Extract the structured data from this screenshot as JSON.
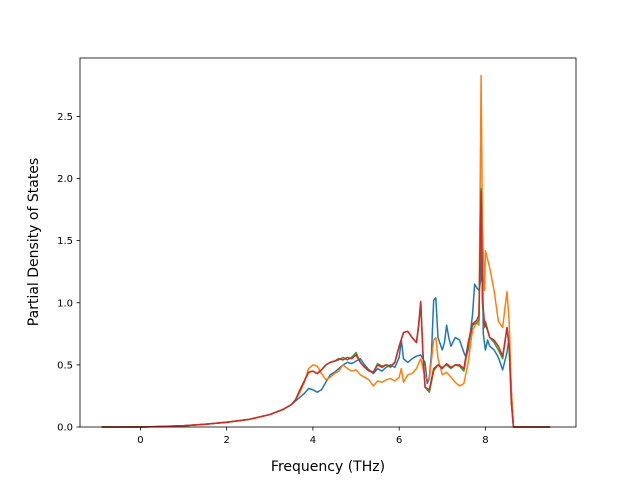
{
  "chart_data": {
    "type": "line",
    "title": "",
    "xlabel": "Frequency (THz)",
    "ylabel": "Partial Density of States",
    "xlim": [
      -1.4,
      10.1
    ],
    "ylim": [
      0.0,
      2.97
    ],
    "xticks": [
      0,
      2,
      4,
      6,
      8
    ],
    "xtick_labels": [
      "0",
      "2",
      "4",
      "6",
      "8"
    ],
    "yticks": [
      0.0,
      0.5,
      1.0,
      1.5,
      2.0,
      2.5
    ],
    "ytick_labels": [
      "0.0",
      "0.5",
      "1.0",
      "1.5",
      "2.0",
      "2.5"
    ],
    "grid": false,
    "legend": "none",
    "series": [
      {
        "color": "#1f77b4",
        "points": [
          [
            -0.9,
            0
          ],
          [
            0,
            0
          ],
          [
            0.5,
            0.004
          ],
          [
            1,
            0.01
          ],
          [
            1.5,
            0.022
          ],
          [
            2,
            0.038
          ],
          [
            2.5,
            0.06
          ],
          [
            3,
            0.1
          ],
          [
            3.3,
            0.14
          ],
          [
            3.5,
            0.18
          ],
          [
            3.6,
            0.21
          ],
          [
            3.7,
            0.24
          ],
          [
            3.8,
            0.27
          ],
          [
            3.9,
            0.31
          ],
          [
            4.0,
            0.3
          ],
          [
            4.1,
            0.28
          ],
          [
            4.2,
            0.3
          ],
          [
            4.3,
            0.36
          ],
          [
            4.4,
            0.42
          ],
          [
            4.5,
            0.44
          ],
          [
            4.6,
            0.47
          ],
          [
            4.7,
            0.5
          ],
          [
            4.8,
            0.52
          ],
          [
            4.9,
            0.51
          ],
          [
            5.0,
            0.53
          ],
          [
            5.1,
            0.55
          ],
          [
            5.2,
            0.5
          ],
          [
            5.3,
            0.46
          ],
          [
            5.4,
            0.43
          ],
          [
            5.5,
            0.47
          ],
          [
            5.6,
            0.45
          ],
          [
            5.7,
            0.48
          ],
          [
            5.8,
            0.5
          ],
          [
            5.9,
            0.48
          ],
          [
            6.0,
            0.56
          ],
          [
            6.05,
            0.7
          ],
          [
            6.1,
            0.55
          ],
          [
            6.2,
            0.52
          ],
          [
            6.3,
            0.55
          ],
          [
            6.4,
            0.57
          ],
          [
            6.5,
            0.58
          ],
          [
            6.6,
            0.52
          ],
          [
            6.65,
            0.35
          ],
          [
            6.7,
            0.4
          ],
          [
            6.75,
            0.6
          ],
          [
            6.8,
            1.02
          ],
          [
            6.85,
            1.04
          ],
          [
            6.9,
            0.72
          ],
          [
            7.0,
            0.62
          ],
          [
            7.05,
            0.68
          ],
          [
            7.1,
            0.82
          ],
          [
            7.15,
            0.72
          ],
          [
            7.2,
            0.65
          ],
          [
            7.3,
            0.72
          ],
          [
            7.4,
            0.7
          ],
          [
            7.5,
            0.6
          ],
          [
            7.55,
            0.56
          ],
          [
            7.6,
            0.62
          ],
          [
            7.7,
            0.9
          ],
          [
            7.75,
            1.15
          ],
          [
            7.8,
            1.12
          ],
          [
            7.85,
            1.1
          ],
          [
            7.9,
            1.2
          ],
          [
            7.92,
            1.8
          ],
          [
            7.95,
            0.75
          ],
          [
            8.0,
            0.62
          ],
          [
            8.05,
            0.7
          ],
          [
            8.1,
            0.65
          ],
          [
            8.2,
            0.62
          ],
          [
            8.3,
            0.56
          ],
          [
            8.4,
            0.46
          ],
          [
            8.5,
            0.6
          ],
          [
            8.55,
            0.72
          ],
          [
            8.6,
            0.3
          ],
          [
            8.65,
            0
          ],
          [
            9.5,
            0
          ]
        ]
      },
      {
        "color": "#ff7f0e",
        "points": [
          [
            -0.9,
            0
          ],
          [
            0,
            0
          ],
          [
            0.5,
            0.004
          ],
          [
            1,
            0.01
          ],
          [
            1.5,
            0.022
          ],
          [
            2,
            0.038
          ],
          [
            2.5,
            0.06
          ],
          [
            3,
            0.1
          ],
          [
            3.3,
            0.14
          ],
          [
            3.5,
            0.18
          ],
          [
            3.6,
            0.22
          ],
          [
            3.7,
            0.28
          ],
          [
            3.8,
            0.36
          ],
          [
            3.9,
            0.47
          ],
          [
            4.0,
            0.5
          ],
          [
            4.1,
            0.49
          ],
          [
            4.2,
            0.43
          ],
          [
            4.3,
            0.38
          ],
          [
            4.4,
            0.4
          ],
          [
            4.5,
            0.43
          ],
          [
            4.6,
            0.45
          ],
          [
            4.7,
            0.5
          ],
          [
            4.8,
            0.47
          ],
          [
            4.9,
            0.45
          ],
          [
            5.0,
            0.46
          ],
          [
            5.1,
            0.42
          ],
          [
            5.2,
            0.4
          ],
          [
            5.3,
            0.38
          ],
          [
            5.4,
            0.33
          ],
          [
            5.5,
            0.37
          ],
          [
            5.6,
            0.36
          ],
          [
            5.7,
            0.38
          ],
          [
            5.8,
            0.39
          ],
          [
            5.9,
            0.37
          ],
          [
            6.0,
            0.4
          ],
          [
            6.05,
            0.47
          ],
          [
            6.1,
            0.36
          ],
          [
            6.2,
            0.42
          ],
          [
            6.3,
            0.43
          ],
          [
            6.4,
            0.47
          ],
          [
            6.5,
            0.55
          ],
          [
            6.6,
            0.4
          ],
          [
            6.7,
            0.38
          ],
          [
            6.8,
            0.7
          ],
          [
            6.85,
            0.72
          ],
          [
            6.9,
            0.55
          ],
          [
            7.0,
            0.42
          ],
          [
            7.1,
            0.44
          ],
          [
            7.2,
            0.4
          ],
          [
            7.3,
            0.36
          ],
          [
            7.4,
            0.33
          ],
          [
            7.5,
            0.35
          ],
          [
            7.6,
            0.52
          ],
          [
            7.7,
            0.78
          ],
          [
            7.8,
            0.84
          ],
          [
            7.85,
            0.82
          ],
          [
            7.9,
            2.83
          ],
          [
            7.93,
            1.6
          ],
          [
            7.98,
            1.1
          ],
          [
            8.0,
            1.42
          ],
          [
            8.05,
            1.35
          ],
          [
            8.1,
            1.28
          ],
          [
            8.2,
            1.1
          ],
          [
            8.3,
            0.85
          ],
          [
            8.4,
            0.8
          ],
          [
            8.45,
            0.95
          ],
          [
            8.5,
            1.09
          ],
          [
            8.55,
            0.85
          ],
          [
            8.6,
            0.3
          ],
          [
            8.65,
            0
          ],
          [
            9.5,
            0
          ]
        ]
      },
      {
        "color": "#2ca02c",
        "points": [
          [
            -0.9,
            0
          ],
          [
            0,
            0
          ],
          [
            0.5,
            0.004
          ],
          [
            1,
            0.01
          ],
          [
            1.5,
            0.022
          ],
          [
            2,
            0.038
          ],
          [
            2.5,
            0.06
          ],
          [
            3,
            0.1
          ],
          [
            3.3,
            0.14
          ],
          [
            3.5,
            0.18
          ],
          [
            3.6,
            0.22
          ],
          [
            3.7,
            0.3
          ],
          [
            3.8,
            0.37
          ],
          [
            3.9,
            0.44
          ],
          [
            4.0,
            0.45
          ],
          [
            4.1,
            0.43
          ],
          [
            4.2,
            0.46
          ],
          [
            4.3,
            0.5
          ],
          [
            4.4,
            0.52
          ],
          [
            4.5,
            0.53
          ],
          [
            4.6,
            0.54
          ],
          [
            4.7,
            0.56
          ],
          [
            4.8,
            0.54
          ],
          [
            4.9,
            0.56
          ],
          [
            5.0,
            0.6
          ],
          [
            5.1,
            0.52
          ],
          [
            5.2,
            0.48
          ],
          [
            5.3,
            0.46
          ],
          [
            5.4,
            0.44
          ],
          [
            5.5,
            0.51
          ],
          [
            5.6,
            0.49
          ],
          [
            5.7,
            0.5
          ],
          [
            5.8,
            0.48
          ],
          [
            5.9,
            0.52
          ],
          [
            6.0,
            0.65
          ],
          [
            6.1,
            0.76
          ],
          [
            6.2,
            0.77
          ],
          [
            6.3,
            0.72
          ],
          [
            6.4,
            0.68
          ],
          [
            6.45,
            0.8
          ],
          [
            6.5,
            1.0
          ],
          [
            6.55,
            0.6
          ],
          [
            6.6,
            0.32
          ],
          [
            6.7,
            0.28
          ],
          [
            6.8,
            0.45
          ],
          [
            6.9,
            0.5
          ],
          [
            7.0,
            0.48
          ],
          [
            7.1,
            0.5
          ],
          [
            7.2,
            0.47
          ],
          [
            7.3,
            0.5
          ],
          [
            7.4,
            0.49
          ],
          [
            7.5,
            0.45
          ],
          [
            7.6,
            0.65
          ],
          [
            7.7,
            0.82
          ],
          [
            7.8,
            0.84
          ],
          [
            7.85,
            0.86
          ],
          [
            7.9,
            1.92
          ],
          [
            7.93,
            1.0
          ],
          [
            7.98,
            0.8
          ],
          [
            8.0,
            0.85
          ],
          [
            8.1,
            0.72
          ],
          [
            8.2,
            0.68
          ],
          [
            8.3,
            0.62
          ],
          [
            8.4,
            0.55
          ],
          [
            8.5,
            0.8
          ],
          [
            8.55,
            0.65
          ],
          [
            8.6,
            0.2
          ],
          [
            8.65,
            0
          ],
          [
            9.5,
            0
          ]
        ]
      },
      {
        "color": "#d62728",
        "points": [
          [
            -0.9,
            0
          ],
          [
            0,
            0
          ],
          [
            0.5,
            0.004
          ],
          [
            1,
            0.01
          ],
          [
            1.5,
            0.022
          ],
          [
            2,
            0.038
          ],
          [
            2.5,
            0.06
          ],
          [
            3,
            0.1
          ],
          [
            3.3,
            0.14
          ],
          [
            3.5,
            0.18
          ],
          [
            3.6,
            0.22
          ],
          [
            3.7,
            0.3
          ],
          [
            3.8,
            0.37
          ],
          [
            3.9,
            0.44
          ],
          [
            4.0,
            0.45
          ],
          [
            4.1,
            0.43
          ],
          [
            4.2,
            0.46
          ],
          [
            4.3,
            0.5
          ],
          [
            4.4,
            0.52
          ],
          [
            4.5,
            0.53
          ],
          [
            4.6,
            0.55
          ],
          [
            4.7,
            0.54
          ],
          [
            4.8,
            0.56
          ],
          [
            4.9,
            0.55
          ],
          [
            5.0,
            0.58
          ],
          [
            5.1,
            0.52
          ],
          [
            5.2,
            0.48
          ],
          [
            5.3,
            0.45
          ],
          [
            5.4,
            0.44
          ],
          [
            5.5,
            0.5
          ],
          [
            5.6,
            0.48
          ],
          [
            5.7,
            0.5
          ],
          [
            5.8,
            0.49
          ],
          [
            5.9,
            0.52
          ],
          [
            6.0,
            0.65
          ],
          [
            6.1,
            0.76
          ],
          [
            6.2,
            0.77
          ],
          [
            6.3,
            0.72
          ],
          [
            6.4,
            0.68
          ],
          [
            6.45,
            0.82
          ],
          [
            6.5,
            1.01
          ],
          [
            6.55,
            0.6
          ],
          [
            6.6,
            0.32
          ],
          [
            6.7,
            0.3
          ],
          [
            6.8,
            0.47
          ],
          [
            6.9,
            0.5
          ],
          [
            7.0,
            0.47
          ],
          [
            7.1,
            0.51
          ],
          [
            7.2,
            0.48
          ],
          [
            7.3,
            0.5
          ],
          [
            7.4,
            0.5
          ],
          [
            7.5,
            0.47
          ],
          [
            7.6,
            0.68
          ],
          [
            7.7,
            0.83
          ],
          [
            7.8,
            0.86
          ],
          [
            7.85,
            0.9
          ],
          [
            7.9,
            1.9
          ],
          [
            7.93,
            1.05
          ],
          [
            7.98,
            0.82
          ],
          [
            8.0,
            0.83
          ],
          [
            8.1,
            0.72
          ],
          [
            8.2,
            0.7
          ],
          [
            8.3,
            0.65
          ],
          [
            8.4,
            0.57
          ],
          [
            8.5,
            0.8
          ],
          [
            8.55,
            0.65
          ],
          [
            8.6,
            0.2
          ],
          [
            8.65,
            0
          ],
          [
            9.5,
            0
          ]
        ]
      }
    ]
  }
}
